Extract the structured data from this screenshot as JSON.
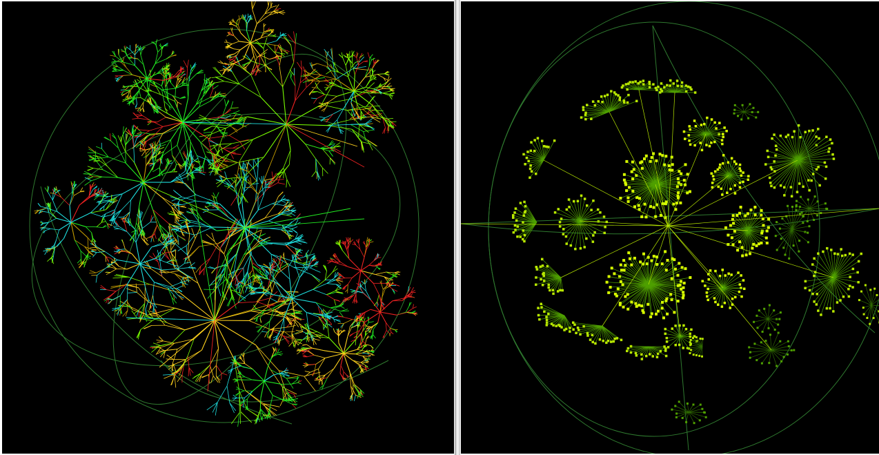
{
  "figure": {
    "panels": [
      {
        "id": "left",
        "view": "hyperbolic-sphere-tree",
        "background": "#000000",
        "wireframe_color": "#2f7a2f",
        "palette": [
          "#22ee22",
          "#7aff00",
          "#1ee0e0",
          "#ffd21e",
          "#ee2222",
          "#c8a000"
        ]
      },
      {
        "id": "right",
        "view": "hyperbolic-sphere-tree",
        "background": "#000000",
        "wireframe_color": "#2f7a2f",
        "palette": [
          "#d8ff00",
          "#b8e800",
          "#4fa000",
          "#2f6a00"
        ]
      }
    ]
  }
}
